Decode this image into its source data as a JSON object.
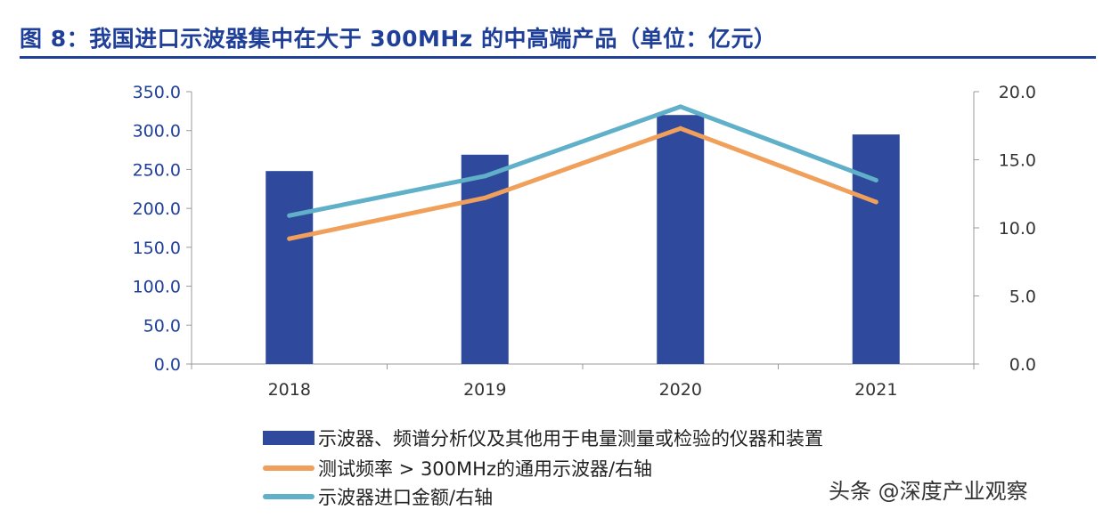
{
  "title": "图 8：我国进口示波器集中在大于 300MHz 的中高端产品（单位：亿元）",
  "watermark": "头条 @深度产业观察",
  "chart_data": {
    "type": "bar",
    "categories": [
      "2018",
      "2019",
      "2020",
      "2021"
    ],
    "series": [
      {
        "name": "示波器、频谱分析仪及其他用于电量测量或检验的仪器和装置",
        "kind": "bar",
        "axis": "left",
        "color": "#2f4a9c",
        "values": [
          248,
          269,
          320,
          295
        ]
      },
      {
        "name": "测试频率 > 300MHz的通用示波器/右轴",
        "kind": "line",
        "axis": "right",
        "color": "#f0a05a",
        "values": [
          9.2,
          12.2,
          17.3,
          11.9
        ]
      },
      {
        "name": "示波器进口金额/右轴",
        "kind": "line",
        "axis": "right",
        "color": "#5fb0c8",
        "values": [
          10.9,
          13.8,
          18.9,
          13.5
        ]
      }
    ],
    "yleft": {
      "ylim": [
        0,
        350
      ],
      "ticks": [
        "0.0",
        "50.0",
        "100.0",
        "150.0",
        "200.0",
        "250.0",
        "300.0",
        "350.0"
      ]
    },
    "yright": {
      "ylim": [
        0,
        20
      ],
      "ticks": [
        "0.0",
        "5.0",
        "10.0",
        "15.0",
        "20.0"
      ]
    },
    "legend_position": "bottom"
  }
}
